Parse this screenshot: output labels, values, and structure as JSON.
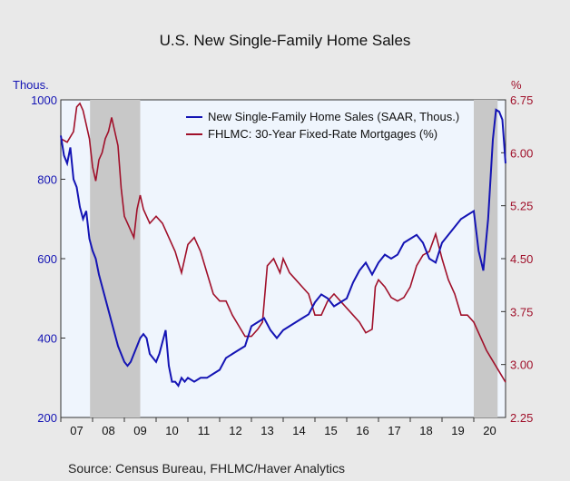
{
  "chart_data": {
    "type": "line",
    "title": "U.S. New Single-Family Home Sales",
    "left_axis": {
      "label": "Thous.",
      "range": [
        200,
        1000
      ],
      "ticks": [
        "200",
        "400",
        "600",
        "800",
        "1000"
      ],
      "color": "#1414b4"
    },
    "right_axis": {
      "label": "%",
      "range": [
        2.25,
        6.75
      ],
      "ticks": [
        "2.25",
        "3.00",
        "3.75",
        "4.50",
        "5.25",
        "6.00",
        "6.75"
      ],
      "color": "#a0102a"
    },
    "x_axis": {
      "range": [
        2007.0,
        2021.0
      ],
      "ticks": [
        "07",
        "08",
        "09",
        "10",
        "11",
        "12",
        "13",
        "14",
        "15",
        "16",
        "17",
        "18",
        "19",
        "20"
      ]
    },
    "recessions": [
      [
        2007.92,
        2009.5
      ],
      [
        2020.0,
        2020.75
      ]
    ],
    "legend_placement": "top-right",
    "series": [
      {
        "name": "New Single-Family Home Sales (SAAR, Thous.)",
        "axis": "left",
        "color": "#1414b4",
        "points": [
          [
            2007.0,
            910
          ],
          [
            2007.1,
            860
          ],
          [
            2007.2,
            840
          ],
          [
            2007.3,
            880
          ],
          [
            2007.4,
            800
          ],
          [
            2007.5,
            780
          ],
          [
            2007.6,
            730
          ],
          [
            2007.7,
            700
          ],
          [
            2007.8,
            720
          ],
          [
            2007.9,
            650
          ],
          [
            2008.0,
            620
          ],
          [
            2008.1,
            600
          ],
          [
            2008.2,
            560
          ],
          [
            2008.3,
            530
          ],
          [
            2008.4,
            500
          ],
          [
            2008.5,
            470
          ],
          [
            2008.6,
            440
          ],
          [
            2008.7,
            410
          ],
          [
            2008.8,
            380
          ],
          [
            2008.9,
            360
          ],
          [
            2009.0,
            340
          ],
          [
            2009.1,
            330
          ],
          [
            2009.2,
            340
          ],
          [
            2009.3,
            360
          ],
          [
            2009.4,
            380
          ],
          [
            2009.5,
            400
          ],
          [
            2009.6,
            410
          ],
          [
            2009.7,
            400
          ],
          [
            2009.8,
            360
          ],
          [
            2009.9,
            350
          ],
          [
            2010.0,
            340
          ],
          [
            2010.1,
            360
          ],
          [
            2010.2,
            390
          ],
          [
            2010.3,
            420
          ],
          [
            2010.4,
            330
          ],
          [
            2010.5,
            290
          ],
          [
            2010.6,
            290
          ],
          [
            2010.7,
            280
          ],
          [
            2010.8,
            300
          ],
          [
            2010.9,
            290
          ],
          [
            2011.0,
            300
          ],
          [
            2011.2,
            290
          ],
          [
            2011.4,
            300
          ],
          [
            2011.6,
            300
          ],
          [
            2011.8,
            310
          ],
          [
            2012.0,
            320
          ],
          [
            2012.2,
            350
          ],
          [
            2012.4,
            360
          ],
          [
            2012.6,
            370
          ],
          [
            2012.8,
            380
          ],
          [
            2013.0,
            430
          ],
          [
            2013.2,
            440
          ],
          [
            2013.4,
            450
          ],
          [
            2013.6,
            420
          ],
          [
            2013.8,
            400
          ],
          [
            2014.0,
            420
          ],
          [
            2014.2,
            430
          ],
          [
            2014.4,
            440
          ],
          [
            2014.6,
            450
          ],
          [
            2014.8,
            460
          ],
          [
            2015.0,
            490
          ],
          [
            2015.2,
            510
          ],
          [
            2015.4,
            500
          ],
          [
            2015.6,
            480
          ],
          [
            2015.8,
            490
          ],
          [
            2016.0,
            500
          ],
          [
            2016.2,
            540
          ],
          [
            2016.4,
            570
          ],
          [
            2016.6,
            590
          ],
          [
            2016.8,
            560
          ],
          [
            2017.0,
            590
          ],
          [
            2017.2,
            610
          ],
          [
            2017.4,
            600
          ],
          [
            2017.6,
            610
          ],
          [
            2017.8,
            640
          ],
          [
            2018.0,
            650
          ],
          [
            2018.2,
            660
          ],
          [
            2018.4,
            640
          ],
          [
            2018.6,
            600
          ],
          [
            2018.8,
            590
          ],
          [
            2019.0,
            640
          ],
          [
            2019.2,
            660
          ],
          [
            2019.4,
            680
          ],
          [
            2019.6,
            700
          ],
          [
            2019.8,
            710
          ],
          [
            2020.0,
            720
          ],
          [
            2020.15,
            620
          ],
          [
            2020.3,
            570
          ],
          [
            2020.45,
            700
          ],
          [
            2020.6,
            900
          ],
          [
            2020.7,
            975
          ],
          [
            2020.8,
            970
          ],
          [
            2020.9,
            950
          ],
          [
            2021.0,
            840
          ]
        ]
      },
      {
        "name": "FHLMC: 30-Year Fixed-Rate Mortgages (%)",
        "axis": "right",
        "color": "#a0102a",
        "points": [
          [
            2007.0,
            6.2
          ],
          [
            2007.2,
            6.15
          ],
          [
            2007.4,
            6.3
          ],
          [
            2007.5,
            6.65
          ],
          [
            2007.6,
            6.7
          ],
          [
            2007.7,
            6.6
          ],
          [
            2007.8,
            6.4
          ],
          [
            2007.9,
            6.2
          ],
          [
            2008.0,
            5.8
          ],
          [
            2008.1,
            5.6
          ],
          [
            2008.2,
            5.9
          ],
          [
            2008.3,
            6.0
          ],
          [
            2008.4,
            6.2
          ],
          [
            2008.5,
            6.3
          ],
          [
            2008.6,
            6.5
          ],
          [
            2008.7,
            6.3
          ],
          [
            2008.8,
            6.1
          ],
          [
            2008.9,
            5.5
          ],
          [
            2009.0,
            5.1
          ],
          [
            2009.1,
            5.0
          ],
          [
            2009.2,
            4.9
          ],
          [
            2009.3,
            4.8
          ],
          [
            2009.4,
            5.2
          ],
          [
            2009.5,
            5.4
          ],
          [
            2009.6,
            5.2
          ],
          [
            2009.8,
            5.0
          ],
          [
            2010.0,
            5.1
          ],
          [
            2010.2,
            5.0
          ],
          [
            2010.4,
            4.8
          ],
          [
            2010.6,
            4.6
          ],
          [
            2010.8,
            4.3
          ],
          [
            2011.0,
            4.7
          ],
          [
            2011.2,
            4.8
          ],
          [
            2011.4,
            4.6
          ],
          [
            2011.6,
            4.3
          ],
          [
            2011.8,
            4.0
          ],
          [
            2012.0,
            3.9
          ],
          [
            2012.2,
            3.9
          ],
          [
            2012.4,
            3.7
          ],
          [
            2012.6,
            3.55
          ],
          [
            2012.8,
            3.4
          ],
          [
            2013.0,
            3.4
          ],
          [
            2013.2,
            3.5
          ],
          [
            2013.35,
            3.6
          ],
          [
            2013.5,
            4.4
          ],
          [
            2013.7,
            4.5
          ],
          [
            2013.9,
            4.3
          ],
          [
            2014.0,
            4.5
          ],
          [
            2014.2,
            4.3
          ],
          [
            2014.4,
            4.2
          ],
          [
            2014.6,
            4.1
          ],
          [
            2014.8,
            4.0
          ],
          [
            2015.0,
            3.7
          ],
          [
            2015.2,
            3.7
          ],
          [
            2015.4,
            3.9
          ],
          [
            2015.6,
            4.0
          ],
          [
            2015.8,
            3.9
          ],
          [
            2016.0,
            3.8
          ],
          [
            2016.2,
            3.7
          ],
          [
            2016.4,
            3.6
          ],
          [
            2016.6,
            3.45
          ],
          [
            2016.8,
            3.5
          ],
          [
            2016.9,
            4.1
          ],
          [
            2017.0,
            4.2
          ],
          [
            2017.2,
            4.1
          ],
          [
            2017.4,
            3.95
          ],
          [
            2017.6,
            3.9
          ],
          [
            2017.8,
            3.95
          ],
          [
            2018.0,
            4.1
          ],
          [
            2018.2,
            4.4
          ],
          [
            2018.4,
            4.55
          ],
          [
            2018.6,
            4.6
          ],
          [
            2018.8,
            4.85
          ],
          [
            2019.0,
            4.5
          ],
          [
            2019.2,
            4.2
          ],
          [
            2019.4,
            4.0
          ],
          [
            2019.6,
            3.7
          ],
          [
            2019.8,
            3.7
          ],
          [
            2020.0,
            3.6
          ],
          [
            2020.2,
            3.4
          ],
          [
            2020.4,
            3.2
          ],
          [
            2020.6,
            3.05
          ],
          [
            2020.8,
            2.9
          ],
          [
            2021.0,
            2.75
          ]
        ]
      }
    ],
    "source": "Source: Census Bureau, FHLMC/Haver Analytics"
  }
}
